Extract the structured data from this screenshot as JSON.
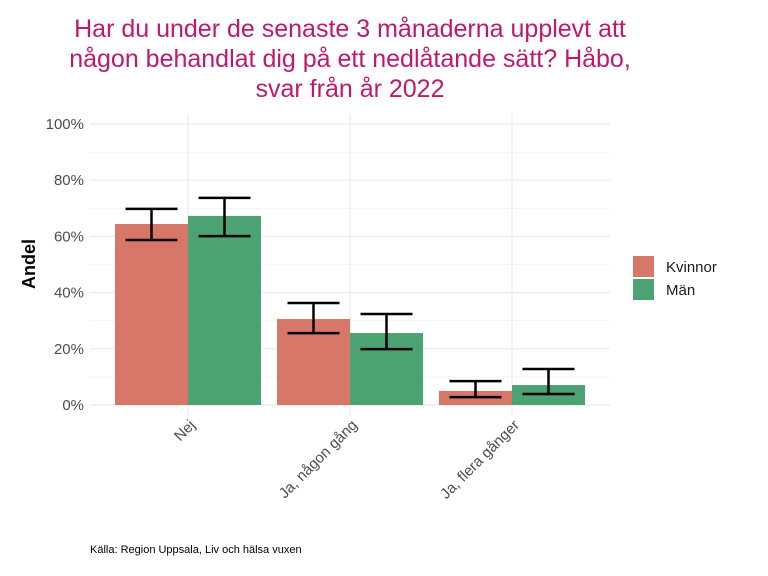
{
  "chart_data": {
    "type": "bar",
    "title_lines": [
      "Har du under de senaste 3 månaderna upplevt att",
      "någon behandlat dig på ett nedlåtande sätt? Håbo,",
      "svar från år 2022"
    ],
    "xlabel": "",
    "ylabel": "Andel",
    "ylim": [
      0,
      100
    ],
    "yticks": [
      0,
      20,
      40,
      60,
      80,
      100
    ],
    "ytick_labels": [
      "0%",
      "20%",
      "40%",
      "60%",
      "80%",
      "100%"
    ],
    "grid": true,
    "categories": [
      "Nej",
      "Ja, någon gång",
      "Ja, flera gånger"
    ],
    "series": [
      {
        "name": "Kvinnor",
        "color": "#D77767",
        "values": [
          64.4,
          30.6,
          5.0
        ],
        "error_low": [
          58.7,
          25.6,
          2.8
        ],
        "error_high": [
          69.8,
          36.3,
          8.5
        ]
      },
      {
        "name": "Män",
        "color": "#4BA272",
        "values": [
          67.3,
          25.6,
          7.1
        ],
        "error_low": [
          60.1,
          19.9,
          3.9
        ],
        "error_high": [
          73.7,
          32.4,
          12.8
        ]
      }
    ],
    "legend_position": "right",
    "caption": "Källa: Region Uppsala, Liv och hälsa vuxen"
  }
}
